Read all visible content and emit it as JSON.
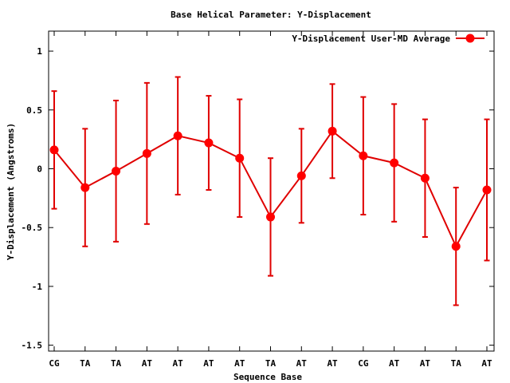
{
  "chart_data": {
    "type": "line",
    "title": "Base  Helical Parameter: Y-Displacement",
    "xlabel": "Sequence Base",
    "ylabel": "Y-Displacement (Angstroms)",
    "categories": [
      "CG",
      "TA",
      "TA",
      "AT",
      "AT",
      "AT",
      "AT",
      "TA",
      "AT",
      "AT",
      "CG",
      "AT",
      "AT",
      "TA",
      "AT"
    ],
    "yticks": [
      "1",
      "0.5",
      "0",
      "-0.5",
      "-1",
      "-1.5"
    ],
    "ylim": [
      -1.55,
      1.17
    ],
    "grid": false,
    "legend_position": "top-right",
    "series": [
      {
        "name": "Y-Displacement User-MD Average",
        "color": "#ff0000",
        "values": [
          0.16,
          -0.16,
          -0.02,
          0.13,
          0.28,
          0.22,
          0.09,
          -0.41,
          -0.06,
          0.32,
          0.11,
          0.05,
          -0.08,
          -0.66,
          -0.18
        ],
        "errors": [
          0.5,
          0.5,
          0.6,
          0.6,
          0.5,
          0.4,
          0.5,
          0.5,
          0.4,
          0.4,
          0.5,
          0.5,
          0.5,
          0.5,
          0.6
        ]
      }
    ]
  }
}
